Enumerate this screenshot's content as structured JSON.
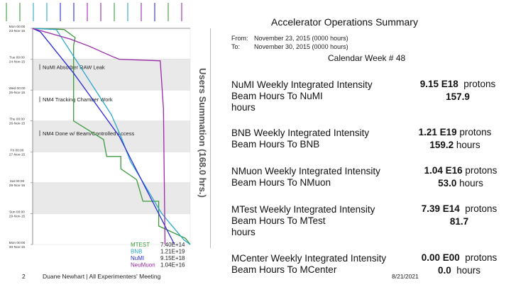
{
  "header": {
    "title": "Accelerator Operations Summary",
    "from_label": "From:",
    "from_value": "November 23, 2015 (0000 hours)",
    "to_label": "To:",
    "to_value": "November 30, 2015 (0000 hours)",
    "week": "Calendar Week # 48"
  },
  "summary": [
    {
      "label1": "NuMI Weekly Integrated Intensity",
      "label2": "Beam Hours To NuMI",
      "label3": "hours",
      "intensity": "9.15 E18",
      "unit": "protons",
      "hours": "157.9",
      "hours_unit": ""
    },
    {
      "label1": "BNB Weekly Integrated Intensity",
      "label2": "Beam Hours To BNB",
      "label3": "",
      "intensity": "1.21 E19",
      "unit": "protons",
      "hours": "159.2",
      "hours_unit": "hours"
    },
    {
      "label1": "NMuon Weekly Integrated Intensity",
      "label2": "Beam Hours To NMuon",
      "label3": "",
      "intensity": "1.04 E16",
      "unit": "protons",
      "hours": "53.0",
      "hours_unit": "hours"
    },
    {
      "label1": "MTest Weekly Integrated Intensity",
      "label2": "Beam Hours To MTest",
      "label3": "hours",
      "intensity": "7.39 E14",
      "unit": "protons",
      "hours": "81.7",
      "hours_unit": ""
    },
    {
      "label1": "MCenter Weekly Integrated Intensity",
      "label2": "Beam Hours To MCenter",
      "label3": "",
      "intensity": "0.00 E00",
      "unit": "protons",
      "hours": "0.0",
      "hours_unit": "hours"
    }
  ],
  "footer": {
    "page_number": "2",
    "presenter": "Duane Newhart | All Experimenters' Meeting",
    "date": "8/21/2021"
  },
  "chart_data": {
    "type": "line",
    "title": "Users Summation (168.0 hrs.)",
    "y_ticks": [
      {
        "time": "Mon 00:00",
        "date": "23-Nov-15"
      },
      {
        "time": "Tue 00:00",
        "date": "24-Nov-15"
      },
      {
        "time": "Wed 00:00",
        "date": "25-Nov-15"
      },
      {
        "time": "Thu 00:00",
        "date": "26-Nov-15"
      },
      {
        "time": "Fri 00:00",
        "date": "27-Nov-15"
      },
      {
        "time": "Sat 00:00",
        "date": "28-Nov-15"
      },
      {
        "time": "Sun 00:00",
        "date": "29-Nov-15"
      },
      {
        "time": "Mon 00:00",
        "date": "30-Nov-15"
      }
    ],
    "y_range_days": [
      0,
      7
    ],
    "annotations": [
      {
        "text": "NuMI Absorber RAW Leak",
        "day": 1.25
      },
      {
        "text": "NM4 Tracking Chamber Work",
        "day": 2.3
      },
      {
        "text": "NM4 Done w/ Beam/Controlled Access",
        "day": 3.4
      }
    ],
    "series": [
      {
        "name": "MTEST",
        "total": "7.40E+14",
        "color": "#3c9a3c",
        "points": [
          [
            0,
            0
          ],
          [
            0.2,
            0.04
          ],
          [
            0.27,
            0.3
          ],
          [
            0.26,
            0.55
          ],
          [
            0.26,
            3.0
          ],
          [
            0.45,
            3.6
          ],
          [
            0.47,
            4.15
          ],
          [
            0.56,
            4.15
          ],
          [
            0.56,
            4.55
          ],
          [
            0.66,
            4.9
          ],
          [
            0.7,
            5.6
          ],
          [
            0.8,
            5.6
          ],
          [
            0.8,
            6.4
          ],
          [
            0.97,
            6.8
          ],
          [
            1.0,
            7.0
          ]
        ]
      },
      {
        "name": "BNB",
        "total": "1.21E+19",
        "color": "#2aa6c9",
        "points": [
          [
            0,
            0
          ],
          [
            0.15,
            0.04
          ],
          [
            0.5,
            2.8
          ],
          [
            0.56,
            3.5
          ],
          [
            0.62,
            4.3
          ],
          [
            0.82,
            6.0
          ],
          [
            0.96,
            6.85
          ],
          [
            1.0,
            7.0
          ]
        ]
      },
      {
        "name": "NuMI",
        "total": "9.15E+18",
        "color": "#2a2ad6",
        "points": [
          [
            0,
            0
          ],
          [
            0.05,
            0.12
          ],
          [
            0.26,
            1.45
          ],
          [
            0.55,
            3.5
          ],
          [
            0.62,
            4.2
          ],
          [
            0.9,
            7.0
          ]
        ]
      },
      {
        "name": "NeuMuon",
        "total": "1.04E+16",
        "color": "#9a2aa8",
        "points": [
          [
            0,
            0
          ],
          [
            0.24,
            0.35
          ],
          [
            0.36,
            0.58
          ],
          [
            0.5,
            0.9
          ],
          [
            0.55,
            1.0
          ],
          [
            0.81,
            1.05
          ],
          [
            0.83,
            2.6
          ],
          [
            0.84,
            7.0
          ]
        ]
      }
    ],
    "x_range_fraction": [
      0,
      1
    ],
    "grid": true,
    "legend": "bottom-right"
  }
}
